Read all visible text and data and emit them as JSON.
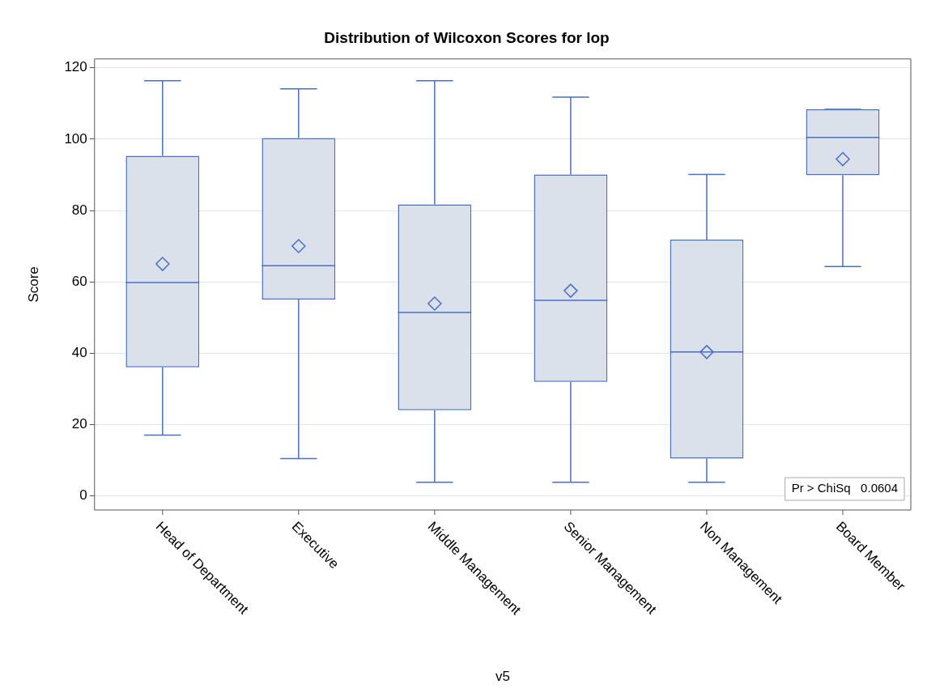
{
  "chart_data": {
    "type": "box",
    "title": "Distribution of Wilcoxon Scores for lop",
    "xlabel": "v5",
    "ylabel": "Score",
    "categories": [
      "Head of Department",
      "Executive",
      "Middle Management",
      "Senior Management",
      "Non Management",
      "Board Member"
    ],
    "boxes": [
      {
        "low": 17,
        "q1": 36,
        "median": 59.8,
        "q3": 95.3,
        "high": 116.4,
        "mean": 65
      },
      {
        "low": 10.4,
        "q1": 55,
        "median": 64.5,
        "q3": 100.3,
        "high": 114.1,
        "mean": 70
      },
      {
        "low": 3.8,
        "q1": 24,
        "median": 51.4,
        "q3": 81.7,
        "high": 116.4,
        "mean": 53.9
      },
      {
        "low": 3.8,
        "q1": 31.9,
        "median": 54.8,
        "q3": 90.1,
        "high": 111.8,
        "mean": 57.5
      },
      {
        "low": 3.8,
        "q1": 10.4,
        "median": 40.3,
        "q3": 71.8,
        "high": 90.1,
        "mean": 40.3
      },
      {
        "low": 64.3,
        "q1": 89.9,
        "median": 100.5,
        "q3": 108.4,
        "high": 108.4,
        "mean": 94.4
      }
    ],
    "color": "#4a6fc7",
    "marker": "diamond",
    "grid": "y",
    "legend": false,
    "ylim": [
      -4,
      122.5
    ],
    "yticks": [
      0,
      20,
      40,
      60,
      80,
      100,
      120
    ],
    "annotations": [
      "Pr > ChiSq   0.0604"
    ]
  }
}
